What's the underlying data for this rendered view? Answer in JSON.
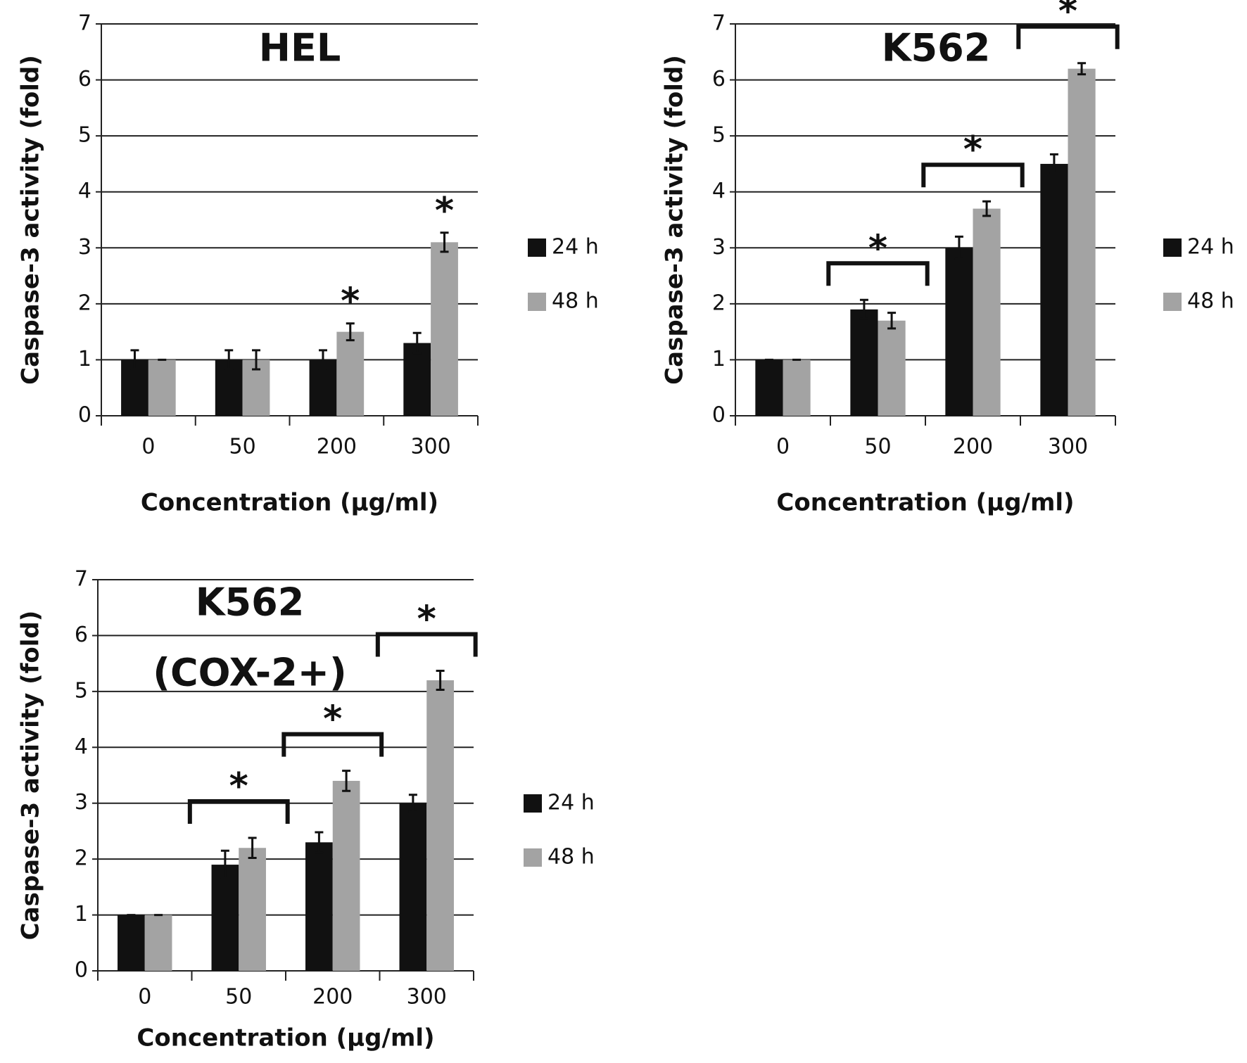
{
  "chart_data": [
    {
      "type": "bar",
      "title": [
        "HEL"
      ],
      "xlabel": "Concentration (µg/ml)",
      "ylabel": "Caspase-3 activity (fold)",
      "categories": [
        "0",
        "50",
        "200",
        "300"
      ],
      "series": [
        {
          "name": "24 h",
          "color": "#111111",
          "values": [
            1,
            1,
            1,
            1.3
          ],
          "errors": [
            0.17,
            0.17,
            0.17,
            0.18
          ]
        },
        {
          "name": "48 h",
          "color": "#a3a3a3",
          "values": [
            1,
            1,
            1.5,
            3.1
          ],
          "errors": [
            0,
            0.17,
            0.15,
            0.17
          ]
        }
      ],
      "ylim": [
        0,
        7
      ],
      "yticks": [
        0,
        1,
        2,
        3,
        4,
        5,
        6,
        7
      ],
      "grid": true,
      "annotations": [
        {
          "text": "*",
          "category": "200",
          "series": "48 h"
        },
        {
          "text": "*",
          "category": "300",
          "series": "48 h"
        }
      ]
    },
    {
      "type": "bar",
      "title": [
        "K562"
      ],
      "xlabel": "Concentration (µg/ml)",
      "ylabel": "Caspase-3 activity (fold)",
      "categories": [
        "0",
        "50",
        "200",
        "300"
      ],
      "series": [
        {
          "name": "24 h",
          "color": "#111111",
          "values": [
            1,
            1.9,
            3,
            4.5
          ],
          "errors": [
            0,
            0.17,
            0.2,
            0.17
          ]
        },
        {
          "name": "48 h",
          "color": "#a3a3a3",
          "values": [
            1,
            1.7,
            3.7,
            6.2
          ],
          "errors": [
            0,
            0.14,
            0.13,
            0.1
          ]
        }
      ],
      "ylim": [
        0,
        7
      ],
      "yticks": [
        0,
        1,
        2,
        3,
        4,
        5,
        6,
        7
      ],
      "grid": true,
      "annotations": [
        {
          "text": "*",
          "category": "50"
        },
        {
          "text": "*",
          "category": "200"
        },
        {
          "text": "*",
          "category": "300"
        }
      ]
    },
    {
      "type": "bar",
      "title": [
        "K562",
        "(COX-2+)"
      ],
      "xlabel": "Concentration (µg/ml)",
      "ylabel": "Caspase-3 activity (fold)",
      "categories": [
        "0",
        "50",
        "200",
        "300"
      ],
      "series": [
        {
          "name": "24 h",
          "color": "#111111",
          "values": [
            1,
            1.9,
            2.3,
            3
          ],
          "errors": [
            0,
            0.25,
            0.18,
            0.15
          ]
        },
        {
          "name": "48 h",
          "color": "#a3a3a3",
          "values": [
            1,
            2.2,
            3.4,
            5.2
          ],
          "errors": [
            0,
            0.18,
            0.18,
            0.17
          ]
        }
      ],
      "ylim": [
        0,
        7
      ],
      "yticks": [
        0,
        1,
        2,
        3,
        4,
        5,
        6,
        7
      ],
      "grid": true,
      "annotations": [
        {
          "text": "*",
          "category": "50"
        },
        {
          "text": "*",
          "category": "200"
        },
        {
          "text": "*",
          "category": "300"
        }
      ]
    }
  ]
}
